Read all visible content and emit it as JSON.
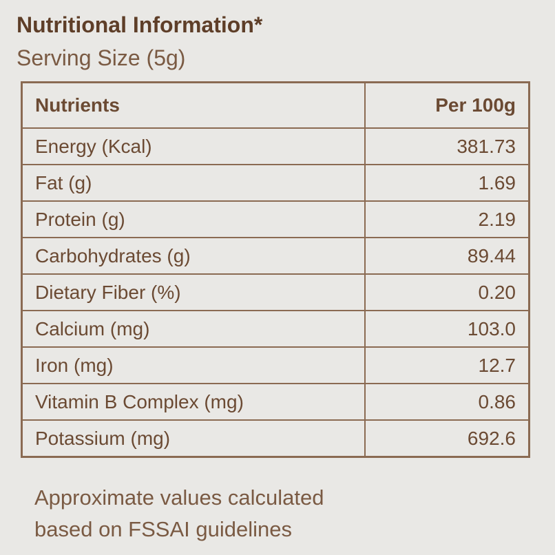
{
  "header": {
    "title": "Nutritional Information*",
    "subtitle": "Serving Size (5g)"
  },
  "table": {
    "columns": [
      "Nutrients",
      "Per 100g"
    ],
    "rows": [
      [
        "Energy (Kcal)",
        "381.73"
      ],
      [
        "Fat (g)",
        "1.69"
      ],
      [
        "Protein (g)",
        "2.19"
      ],
      [
        "Carbohydrates (g)",
        "89.44"
      ],
      [
        "Dietary Fiber (%)",
        "0.20"
      ],
      [
        "Calcium (mg)",
        "103.0"
      ],
      [
        "Iron (mg)",
        "12.7"
      ],
      [
        "Vitamin B Complex (mg)",
        "0.86"
      ],
      [
        "Potassium (mg)",
        "692.6"
      ]
    ]
  },
  "footnote": [
    "Approximate values calculated",
    "based on FSSAI guidelines"
  ]
}
